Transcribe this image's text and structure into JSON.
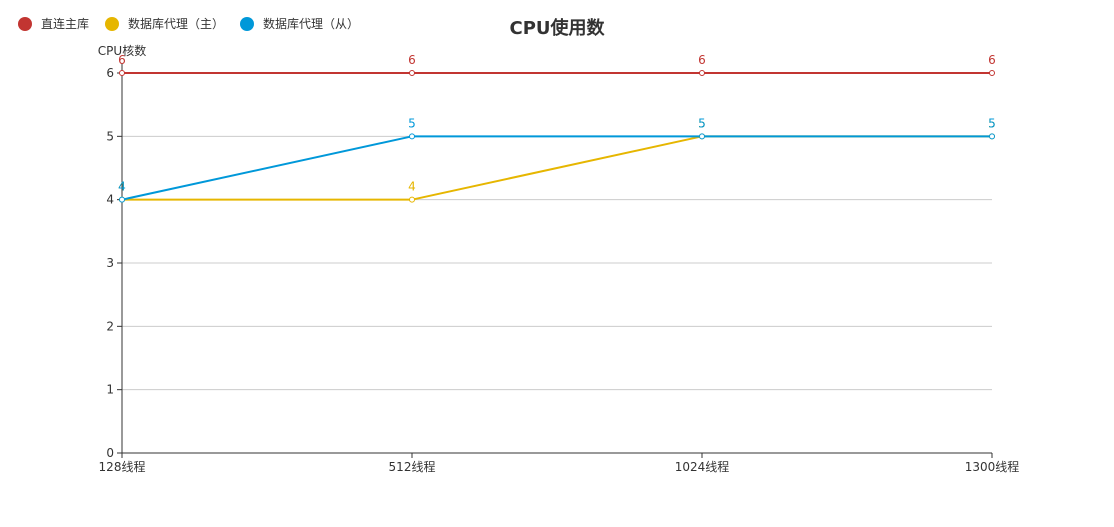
{
  "chart_data": {
    "type": "line",
    "title": "CPU使用数",
    "ylabel": "CPU核数",
    "xlabel": "",
    "categories": [
      "128线程",
      "512线程",
      "1024线程",
      "1300线程"
    ],
    "ylim": [
      0,
      6
    ],
    "yticks": [
      0,
      1,
      2,
      3,
      4,
      5,
      6
    ],
    "grid": true,
    "legend_position": "top-left",
    "series": [
      {
        "name": "直连主库",
        "color": "#c23531",
        "values": [
          6,
          6,
          6,
          6
        ]
      },
      {
        "name": "数据库代理（主）",
        "color": "#e6b600",
        "values": [
          4,
          4,
          5,
          5
        ]
      },
      {
        "name": "数据库代理（从）",
        "color": "#0098d9",
        "values": [
          4,
          5,
          5,
          5
        ]
      }
    ]
  }
}
